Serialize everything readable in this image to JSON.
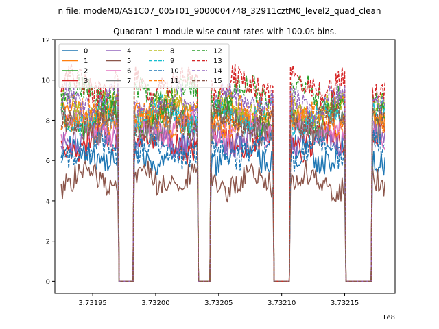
{
  "chart_data": {
    "type": "line",
    "suptitle": "n file: modeM0/AS1C07_005T01_9000004748_32911cztM0_level2_quad_clean",
    "title": "Quadrant 1 module wise count rates with 100.0s bins.",
    "xlabel": "",
    "ylabel": "",
    "offset_text": "1e8",
    "xlim": [
      373192000,
      373219000
    ],
    "ylim": [
      -0.6,
      12
    ],
    "xticks": [
      373195000,
      373200000,
      373205000,
      373210000,
      373215000
    ],
    "xtick_labels": [
      "3.73195",
      "3.73200",
      "3.73205",
      "3.73210",
      "3.73215"
    ],
    "yticks": [
      0,
      2,
      4,
      6,
      8,
      10,
      12
    ],
    "ytick_labels": [
      "0",
      "2",
      "4",
      "6",
      "8",
      "10",
      "12"
    ],
    "legend_placement": "top-left",
    "series": [
      {
        "name": "0",
        "color": "#1f77b4",
        "dash": "solid",
        "level": 6.3
      },
      {
        "name": "1",
        "color": "#ff7f0e",
        "dash": "solid",
        "level": 8.4
      },
      {
        "name": "2",
        "color": "#2ca02c",
        "dash": "solid",
        "level": 8.0
      },
      {
        "name": "3",
        "color": "#d62728",
        "dash": "solid",
        "level": 6.9
      },
      {
        "name": "4",
        "color": "#9467bd",
        "dash": "solid",
        "level": 7.2
      },
      {
        "name": "5",
        "color": "#8c564b",
        "dash": "solid",
        "level": 5.0
      },
      {
        "name": "6",
        "color": "#e377c2",
        "dash": "solid",
        "level": 7.6
      },
      {
        "name": "7",
        "color": "#7f7f7f",
        "dash": "solid",
        "level": 7.8
      },
      {
        "name": "8",
        "color": "#bcbd22",
        "dash": "dashed",
        "level": 8.6
      },
      {
        "name": "9",
        "color": "#17becf",
        "dash": "dashed",
        "level": 8.2
      },
      {
        "name": "10",
        "color": "#1f77b4",
        "dash": "dashed",
        "level": 6.5
      },
      {
        "name": "11",
        "color": "#ff7f0e",
        "dash": "dashed",
        "level": 8.1
      },
      {
        "name": "12",
        "color": "#2ca02c",
        "dash": "dashed",
        "level": 9.3
      },
      {
        "name": "13",
        "color": "#d62728",
        "dash": "dashed",
        "level": 9.8
      },
      {
        "name": "14",
        "color": "#9467bd",
        "dash": "dashed",
        "level": 8.9
      },
      {
        "name": "15",
        "color": "#8c564b",
        "dash": "dashed",
        "level": 8.0
      }
    ],
    "active_segments": [
      [
        373192500,
        373197000
      ],
      [
        373198300,
        373203300
      ],
      [
        373204400,
        373209300
      ],
      [
        373210700,
        373215000
      ],
      [
        373217200,
        373218200
      ]
    ],
    "gap_value": 0
  }
}
